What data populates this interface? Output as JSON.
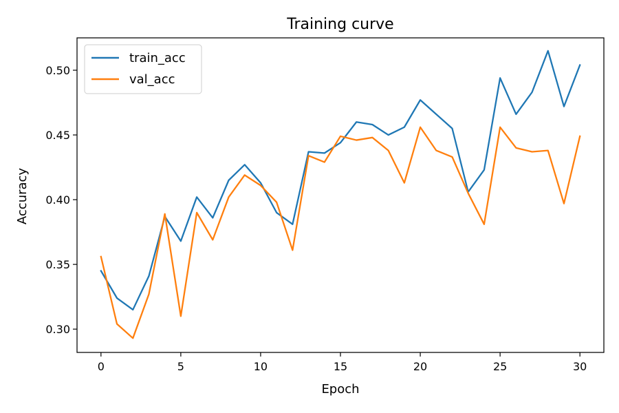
{
  "chart_data": {
    "type": "line",
    "title": "Training curve",
    "xlabel": "Epoch",
    "ylabel": "Accuracy",
    "xlim": [
      -1.5,
      31.5
    ],
    "ylim": [
      0.282,
      0.525
    ],
    "xticks": [
      0,
      5,
      10,
      15,
      20,
      25,
      30
    ],
    "xtick_labels": [
      "0",
      "5",
      "10",
      "15",
      "20",
      "25",
      "30"
    ],
    "yticks": [
      0.3,
      0.35,
      0.4,
      0.45,
      0.5
    ],
    "ytick_labels": [
      "0.30",
      "0.35",
      "0.40",
      "0.45",
      "0.50"
    ],
    "grid": false,
    "legend_position": "top-left",
    "x": [
      0,
      1,
      2,
      3,
      4,
      5,
      6,
      7,
      8,
      9,
      10,
      11,
      12,
      13,
      14,
      15,
      16,
      17,
      18,
      19,
      20,
      21,
      22,
      23,
      24,
      25,
      26,
      27,
      28,
      29,
      30
    ],
    "series": [
      {
        "name": "train_acc",
        "color": "#1f77b4",
        "values": [
          0.345,
          0.324,
          0.315,
          0.341,
          0.387,
          0.368,
          0.402,
          0.386,
          0.415,
          0.427,
          0.413,
          0.39,
          0.381,
          0.437,
          0.436,
          0.444,
          0.46,
          0.458,
          0.45,
          0.456,
          0.477,
          0.466,
          0.455,
          0.406,
          0.423,
          0.494,
          0.466,
          0.483,
          0.515,
          0.472,
          0.504
        ]
      },
      {
        "name": "val_acc",
        "color": "#ff7f0e",
        "values": [
          0.356,
          0.304,
          0.293,
          0.327,
          0.389,
          0.31,
          0.39,
          0.369,
          0.402,
          0.419,
          0.411,
          0.398,
          0.361,
          0.434,
          0.429,
          0.449,
          0.446,
          0.448,
          0.438,
          0.413,
          0.456,
          0.438,
          0.433,
          0.405,
          0.381,
          0.456,
          0.44,
          0.437,
          0.438,
          0.397,
          0.449
        ]
      }
    ]
  }
}
